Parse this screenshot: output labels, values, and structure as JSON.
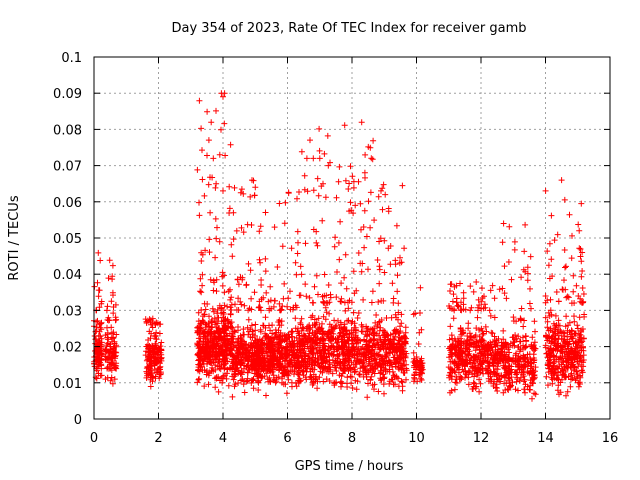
{
  "chart_data": {
    "type": "scatter",
    "title": "Day 354 of 2023, Rate Of TEC Index for receiver gamb",
    "xlabel": "GPS time / hours",
    "ylabel": "ROTI / TECUs",
    "xlim": [
      0,
      16
    ],
    "ylim": [
      0,
      0.1
    ],
    "xticks": [
      "0",
      "2",
      "4",
      "6",
      "8",
      "10",
      "12",
      "14",
      "16"
    ],
    "yticks": [
      "0",
      "0.01",
      "0.02",
      "0.03",
      "0.04",
      "0.05",
      "0.06",
      "0.07",
      "0.08",
      "0.09",
      "0.1"
    ],
    "grid": true,
    "marker": "plus",
    "series_color": "#ff0000",
    "series": [
      {
        "name": "ROTI",
        "clusters": [
          {
            "x_start": 0.0,
            "x_end": 0.25,
            "y_low": 0.008,
            "y_high": 0.03,
            "peak": 0.048,
            "count": 110
          },
          {
            "x_start": 0.35,
            "x_end": 0.7,
            "y_low": 0.008,
            "y_high": 0.027,
            "peak": 0.046,
            "count": 110
          },
          {
            "x_start": 1.6,
            "x_end": 2.1,
            "y_low": 0.007,
            "y_high": 0.026,
            "peak": 0.029,
            "count": 160
          },
          {
            "x_start": 3.2,
            "x_end": 4.3,
            "y_low": 0.006,
            "y_high": 0.035,
            "peak": 0.09,
            "count": 500
          },
          {
            "x_start": 4.3,
            "x_end": 6.4,
            "y_low": 0.005,
            "y_high": 0.03,
            "peak": 0.066,
            "count": 800
          },
          {
            "x_start": 6.4,
            "x_end": 9.7,
            "y_low": 0.005,
            "y_high": 0.032,
            "peak": 0.082,
            "count": 1100
          },
          {
            "x_start": 9.9,
            "x_end": 10.2,
            "y_low": 0.009,
            "y_high": 0.02,
            "peak": 0.041,
            "count": 70
          },
          {
            "x_start": 11.0,
            "x_end": 12.3,
            "y_low": 0.005,
            "y_high": 0.03,
            "peak": 0.038,
            "count": 380
          },
          {
            "x_start": 12.3,
            "x_end": 13.7,
            "y_low": 0.004,
            "y_high": 0.027,
            "peak": 0.054,
            "count": 360
          },
          {
            "x_start": 14.0,
            "x_end": 15.2,
            "y_low": 0.005,
            "y_high": 0.032,
            "peak": 0.066,
            "count": 420
          }
        ],
        "notable_points": [
          {
            "x": 3.95,
            "y": 0.09
          },
          {
            "x": 4.0,
            "y": 0.089
          },
          {
            "x": 4.05,
            "y": 0.09
          },
          {
            "x": 8.3,
            "y": 0.082
          },
          {
            "x": 3.7,
            "y": 0.072
          },
          {
            "x": 3.9,
            "y": 0.073
          },
          {
            "x": 6.6,
            "y": 0.072
          },
          {
            "x": 6.8,
            "y": 0.072
          },
          {
            "x": 7.0,
            "y": 0.072
          },
          {
            "x": 8.4,
            "y": 0.068
          },
          {
            "x": 4.9,
            "y": 0.066
          },
          {
            "x": 5.0,
            "y": 0.064
          },
          {
            "x": 14.5,
            "y": 0.066
          },
          {
            "x": 8.9,
            "y": 0.063
          },
          {
            "x": 7.1,
            "y": 0.065
          },
          {
            "x": 12.7,
            "y": 0.054
          },
          {
            "x": 5.6,
            "y": 0.053
          },
          {
            "x": 3.6,
            "y": 0.057
          },
          {
            "x": 8.1,
            "y": 0.059
          },
          {
            "x": 4.0,
            "y": 0.063
          }
        ]
      }
    ]
  }
}
